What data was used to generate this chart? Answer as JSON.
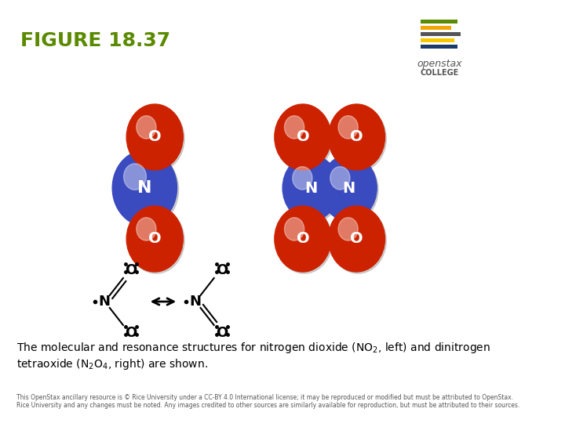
{
  "title": "FIGURE 18.37",
  "title_color": "#5a8a00",
  "bg_color": "#ffffff",
  "border_colors": {
    "left": "#5a8a00",
    "top": "#f0a500",
    "right": "#5a8a00",
    "bottom_colors": [
      "#5a8a00",
      "#f0a500",
      "#555555",
      "#f5c800",
      "#1a3a6a"
    ]
  },
  "caption": "The molecular and resonance structures for nitrogen dioxide (NO",
  "caption2": ", left) and dinitrogen\ntetraoxide (N",
  "caption3": "O",
  "caption4": ", right) are shown.",
  "footer": "This OpenStax ancillary resource is © Rice University under a CC-BY 4.0 International license; it may be reproduced or modified but must be attributed to OpenStax.\nRice University and any changes must be noted. Any images credited to other sources are similarly available for reproduction, but must be attributed to their sources.",
  "openstax_bar_colors": [
    "#5a8a00",
    "#f0a500",
    "#555555",
    "#f5c800",
    "#1a3a6a"
  ],
  "red_color": "#cc2200",
  "blue_color": "#3a4abf",
  "atom_label_color": "#ffffff"
}
